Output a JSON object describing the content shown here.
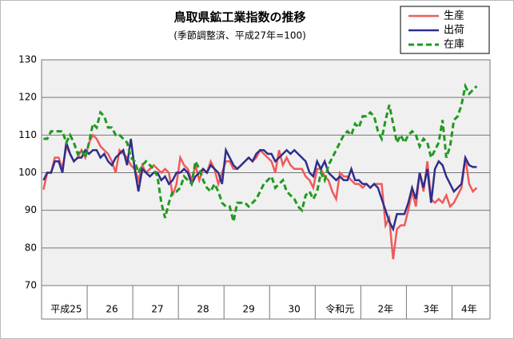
{
  "chart_data": {
    "type": "line",
    "title": "鳥取県鉱工業指数の推移",
    "subtitle": "(季節調整済、平成27年=100)",
    "categories": [
      null,
      null,
      null,
      null,
      null,
      null,
      "平成25",
      null,
      null,
      null,
      null,
      null,
      null,
      null,
      null,
      null,
      null,
      null,
      "26",
      null,
      null,
      null,
      null,
      null,
      null,
      null,
      null,
      null,
      null,
      null,
      "27",
      null,
      null,
      null,
      null,
      null,
      null,
      null,
      null,
      null,
      null,
      null,
      "28",
      null,
      null,
      null,
      null,
      null,
      null,
      null,
      null,
      null,
      null,
      null,
      "29",
      null,
      null,
      null,
      null,
      null,
      null,
      null,
      null,
      null,
      null,
      null,
      "30",
      null,
      null,
      null,
      null,
      null,
      null,
      null,
      null,
      null,
      null,
      null,
      "令和元",
      null,
      null,
      null,
      null,
      null,
      null,
      null,
      null,
      null,
      null,
      null,
      "2年",
      null,
      null,
      null,
      null,
      null,
      null,
      null,
      null,
      null,
      null,
      null,
      "3年",
      null,
      null,
      null,
      null,
      null,
      null,
      null,
      null,
      null,
      "4年",
      null,
      null
    ],
    "series": [
      {
        "name": "生産",
        "color": "#f05a5a",
        "dash": false,
        "values": [
          95.5,
          100,
          100,
          104,
          104,
          101,
          107,
          105,
          103,
          104,
          106,
          104,
          108,
          110,
          109,
          107,
          106,
          105,
          103,
          100,
          106,
          105,
          104,
          102,
          101,
          98,
          102,
          100,
          101,
          102,
          101,
          100,
          101,
          100,
          94,
          97,
          104,
          102,
          101,
          98,
          102,
          98,
          101,
          100,
          103,
          101,
          97,
          100,
          103,
          103,
          101,
          101,
          102,
          103,
          104,
          103,
          104,
          106,
          105,
          104,
          103,
          100,
          106,
          102,
          104,
          102,
          101,
          101,
          101,
          99,
          98,
          96,
          101,
          101,
          99,
          98,
          95,
          93,
          100,
          99,
          99,
          98,
          97,
          97,
          96,
          97,
          96,
          97,
          97,
          97,
          86,
          88,
          77,
          85,
          86,
          86,
          90,
          95,
          91,
          100,
          95,
          103,
          93,
          92,
          93,
          92,
          94,
          91,
          92,
          94,
          96,
          104,
          97,
          95,
          96
        ]
      },
      {
        "name": "出荷",
        "color": "#2e2e8c",
        "dash": false,
        "values": [
          98,
          100,
          100,
          103,
          103,
          100,
          108,
          105,
          103,
          104,
          104,
          106,
          105,
          106,
          106,
          104,
          105,
          103,
          102,
          104,
          105,
          106,
          102,
          109,
          101,
          95,
          101,
          100,
          99,
          100,
          100,
          98,
          99,
          97,
          98,
          100,
          100,
          101,
          100,
          97,
          99,
          100,
          101,
          100,
          102,
          101,
          100,
          97,
          106,
          104,
          102,
          101,
          102,
          103,
          104,
          103,
          105,
          106,
          106,
          105,
          105,
          103,
          104,
          105,
          106,
          105,
          106,
          105,
          104,
          103,
          100,
          99,
          103,
          101,
          103,
          100,
          99,
          98,
          99,
          98,
          98,
          101,
          98,
          98,
          97,
          97,
          96,
          97,
          96,
          93,
          90,
          87,
          85,
          89,
          89,
          89,
          92,
          96,
          93,
          100,
          96,
          101,
          92,
          101,
          103,
          102,
          99,
          97,
          95,
          96,
          97,
          104,
          102,
          101.5,
          101.5
        ]
      },
      {
        "name": "在庫",
        "color": "#1e9a1e",
        "dash": true,
        "values": [
          109,
          109,
          111,
          111,
          111,
          111,
          108,
          110,
          108,
          105,
          106,
          104,
          108,
          113,
          112,
          116,
          115,
          112,
          112,
          110,
          110,
          109,
          108,
          104,
          103,
          100,
          102,
          103,
          102,
          101,
          99,
          92,
          88,
          92,
          95,
          95,
          96,
          99,
          98,
          97,
          103,
          101,
          98,
          96,
          95,
          97,
          95,
          92,
          91,
          91,
          87,
          92,
          92,
          92,
          91,
          92,
          93,
          95,
          97,
          98,
          99,
          96,
          97,
          98,
          95,
          94,
          93,
          91,
          90,
          94,
          95,
          93,
          95,
          100,
          98,
          102,
          104,
          106,
          108,
          110,
          111,
          110,
          113,
          112,
          115,
          115,
          116,
          115,
          111,
          109,
          114,
          118,
          113,
          108,
          110,
          108,
          110,
          111,
          110,
          107,
          109,
          108,
          104,
          106,
          108,
          114,
          104,
          107,
          114,
          115,
          118,
          123,
          121,
          122,
          123
        ]
      }
    ],
    "ylim": [
      70,
      130
    ],
    "yticks": [
      70,
      80,
      90,
      100,
      110,
      120,
      130
    ],
    "grid": true,
    "legend": "upper right"
  }
}
